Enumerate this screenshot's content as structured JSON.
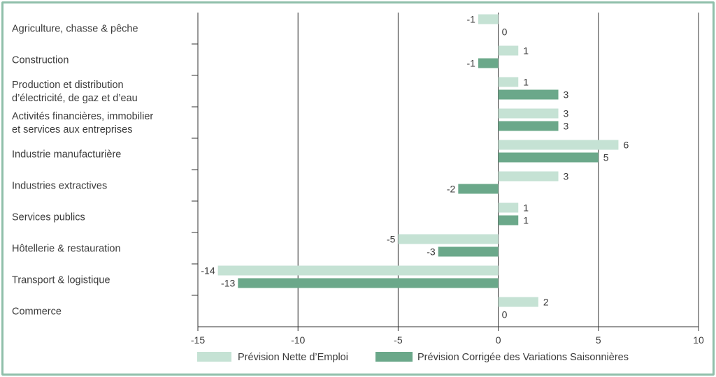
{
  "colors": {
    "series1": "#c5e2d4",
    "series2": "#6ba88a",
    "frame": "#8fbfaa",
    "axis": "#333333",
    "text": "#3a3a3a"
  },
  "chart_data": {
    "type": "bar",
    "orientation": "horizontal",
    "title": "",
    "xlabel": "",
    "ylabel": "",
    "xlim": [
      -15,
      10
    ],
    "xticks": [
      -15,
      -10,
      -5,
      0,
      5,
      10
    ],
    "grid": true,
    "legend_position": "bottom",
    "categories": [
      [
        "Agriculture, chasse & pêche"
      ],
      [
        "Construction"
      ],
      [
        "Production et distribution",
        "d’électricité, de gaz et d’eau"
      ],
      [
        "Activités financières, immobilier",
        "et services aux entreprises"
      ],
      [
        "Industrie manufacturière"
      ],
      [
        "Industries extractives"
      ],
      [
        "Services publics"
      ],
      [
        "Hôtellerie & restauration"
      ],
      [
        "Transport & logistique"
      ],
      [
        "Commerce"
      ]
    ],
    "series": [
      {
        "name": "Prévision Nette d’Emploi",
        "values": [
          -1,
          1,
          1,
          3,
          6,
          3,
          1,
          -5,
          -14,
          2
        ]
      },
      {
        "name": "Prévision Corrigée des Variations Saisonnières",
        "values": [
          0,
          -1,
          3,
          3,
          5,
          -2,
          1,
          -3,
          -13,
          0
        ]
      }
    ]
  }
}
